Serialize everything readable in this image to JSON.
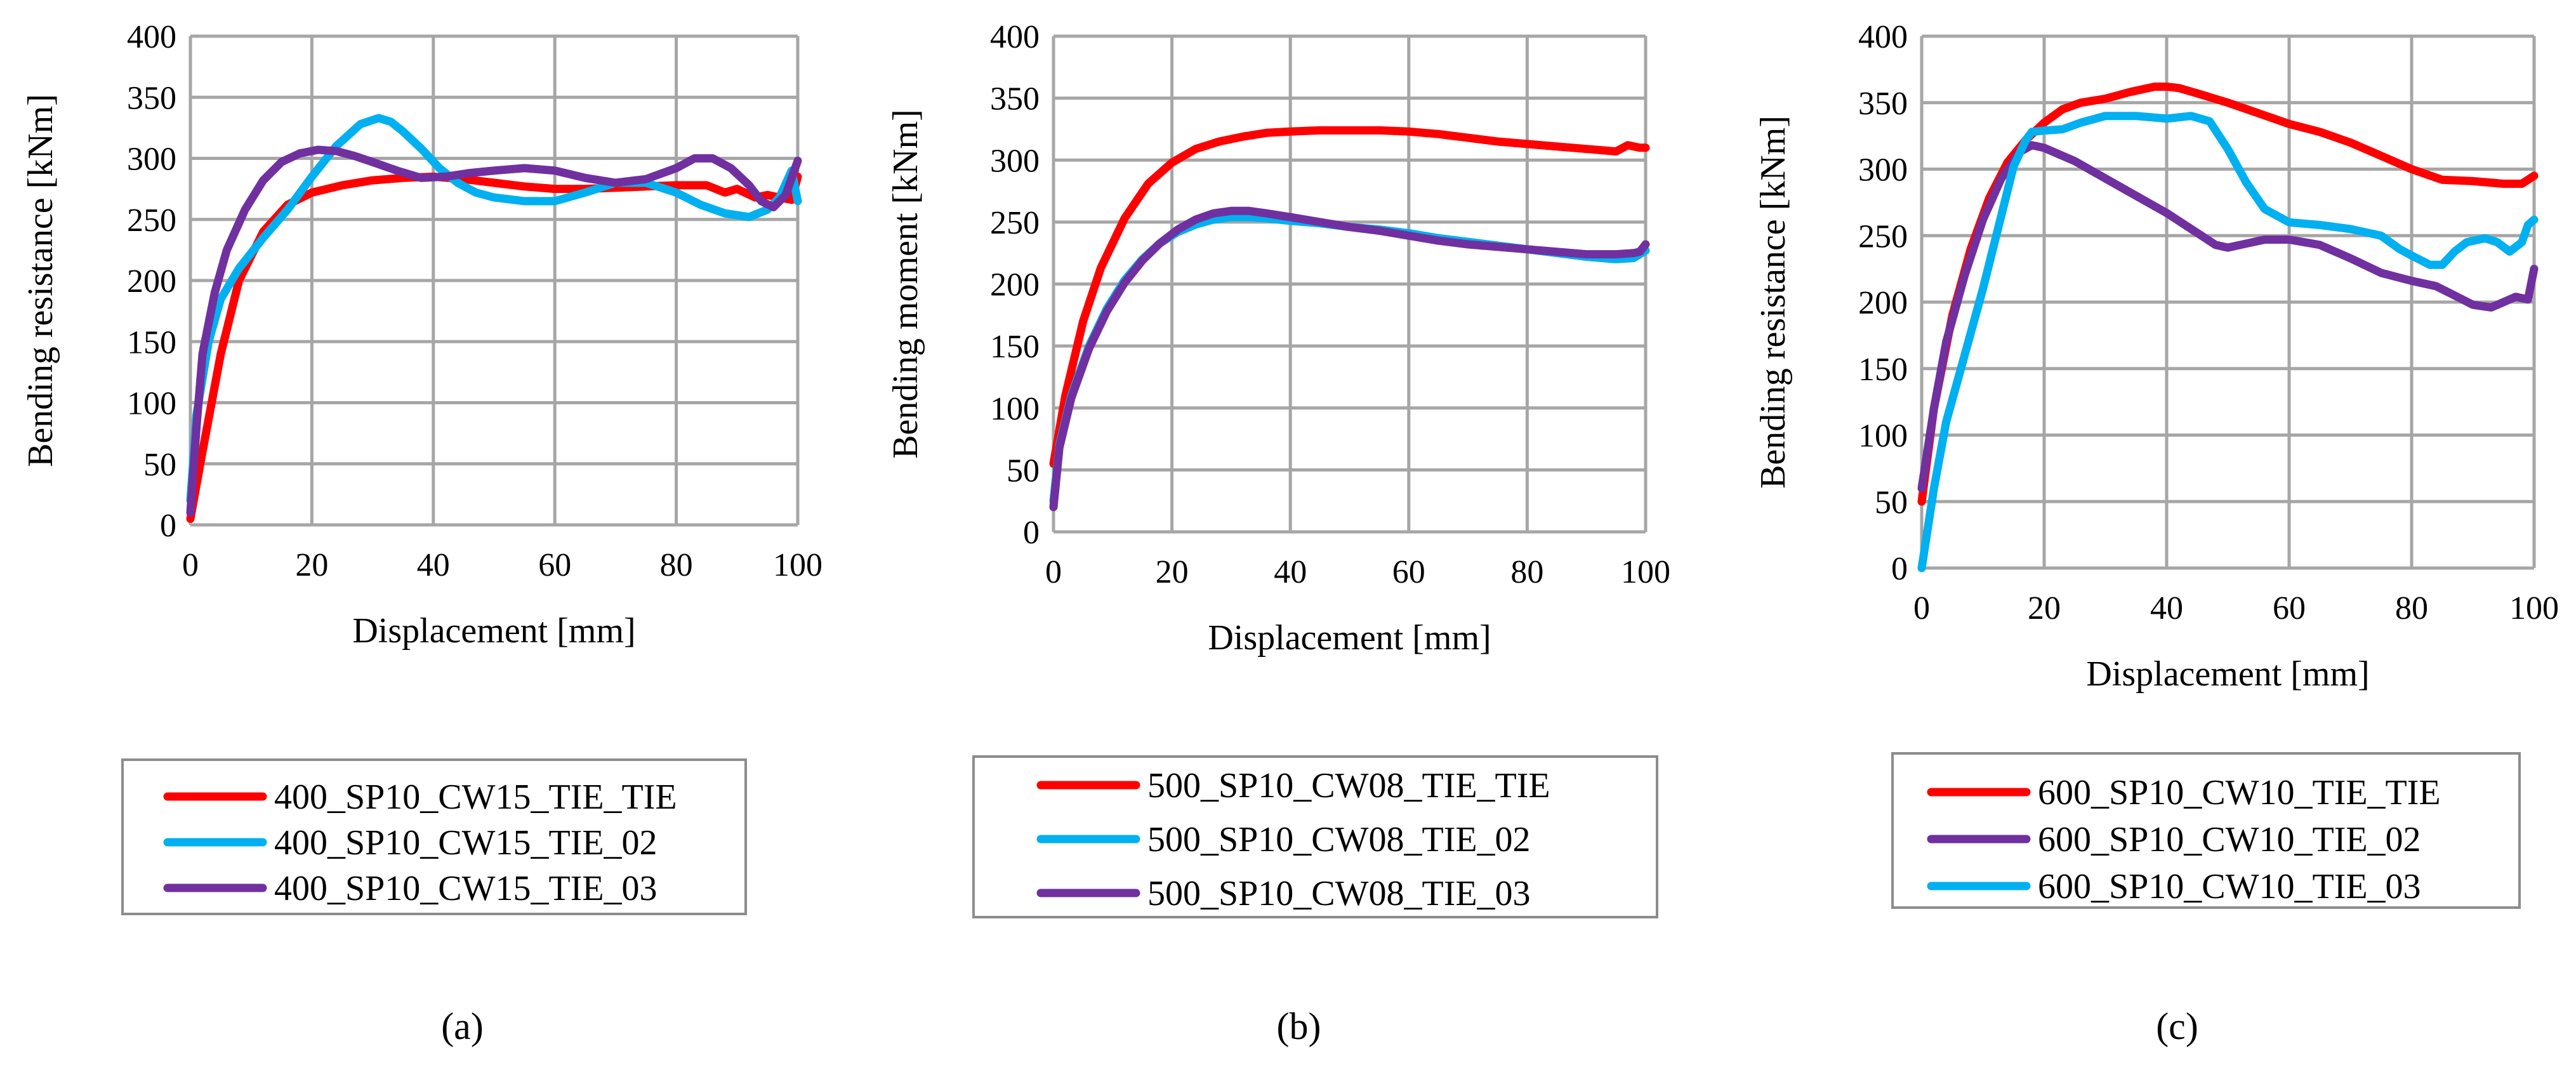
{
  "chart_data": [
    {
      "type": "line",
      "panel_label": "(a)",
      "title": "",
      "xlabel": "Displacement [mm]",
      "ylabel": "Bending resistance [kNm]",
      "xlim": [
        0,
        100
      ],
      "ylim": [
        0,
        400
      ],
      "xticks": [
        0,
        20,
        40,
        60,
        80,
        100
      ],
      "yticks": [
        0,
        50,
        100,
        150,
        200,
        250,
        300,
        350,
        400
      ],
      "grid": true,
      "legend_position": "below",
      "series": [
        {
          "name": "400_SP10_CW15_TIE_TIE",
          "color": "#ff0000",
          "x": [
            0,
            2,
            5,
            8,
            12,
            16,
            20,
            25,
            30,
            35,
            40,
            45,
            50,
            55,
            60,
            65,
            70,
            75,
            80,
            85,
            88,
            90,
            93,
            95,
            97,
            99,
            100
          ],
          "y": [
            5,
            60,
            140,
            200,
            240,
            262,
            272,
            278,
            282,
            284,
            285,
            283,
            280,
            277,
            275,
            275,
            276,
            277,
            278,
            278,
            272,
            275,
            268,
            270,
            268,
            266,
            285
          ]
        },
        {
          "name": "400_SP10_CW15_TIE_02",
          "color": "#00b0f0",
          "x": [
            0,
            1,
            3,
            5,
            8,
            12,
            16,
            20,
            24,
            28,
            31,
            33,
            35,
            38,
            41,
            44,
            47,
            50,
            55,
            60,
            65,
            70,
            75,
            80,
            84,
            88,
            92,
            95,
            97,
            99,
            100
          ],
          "y": [
            20,
            90,
            150,
            185,
            210,
            235,
            258,
            285,
            310,
            328,
            333,
            330,
            322,
            308,
            292,
            280,
            272,
            268,
            265,
            265,
            272,
            280,
            280,
            272,
            262,
            255,
            252,
            258,
            268,
            290,
            265
          ]
        },
        {
          "name": "400_SP10_CW15_TIE_03",
          "color": "#7030a0",
          "x": [
            0,
            1,
            2,
            4,
            6,
            9,
            12,
            15,
            18,
            21,
            24,
            27,
            30,
            34,
            38,
            42,
            46,
            50,
            55,
            60,
            65,
            70,
            75,
            80,
            83,
            86,
            89,
            92,
            94,
            96,
            98,
            100
          ],
          "y": [
            10,
            80,
            140,
            190,
            225,
            258,
            282,
            297,
            304,
            307,
            306,
            302,
            297,
            290,
            284,
            285,
            288,
            290,
            292,
            290,
            284,
            280,
            283,
            292,
            300,
            300,
            292,
            278,
            265,
            260,
            270,
            298
          ]
        }
      ]
    },
    {
      "type": "line",
      "panel_label": "(b)",
      "title": "",
      "xlabel": "Displacement [mm]",
      "ylabel": "Bending moment [kNm]",
      "xlim": [
        0,
        100
      ],
      "ylim": [
        0,
        400
      ],
      "xticks": [
        0,
        20,
        40,
        60,
        80,
        100
      ],
      "yticks": [
        0,
        50,
        100,
        150,
        200,
        250,
        300,
        350,
        400
      ],
      "grid": true,
      "legend_position": "below",
      "series": [
        {
          "name": "500_SP10_CW08_TIE_TIE",
          "color": "#ff0000",
          "x": [
            0,
            2,
            5,
            8,
            12,
            16,
            20,
            24,
            28,
            32,
            36,
            40,
            45,
            50,
            55,
            60,
            65,
            70,
            75,
            80,
            85,
            90,
            95,
            97,
            99,
            100
          ],
          "y": [
            55,
            110,
            170,
            213,
            253,
            281,
            298,
            309,
            315,
            319,
            322,
            323,
            324,
            324,
            324,
            323,
            321,
            318,
            315,
            313,
            311,
            309,
            307,
            312,
            310,
            310
          ]
        },
        {
          "name": "500_SP10_CW08_TIE_02",
          "color": "#00b0f0",
          "x": [
            0,
            1,
            3,
            6,
            9,
            12,
            15,
            18,
            21,
            24,
            27,
            30,
            33,
            36,
            40,
            45,
            50,
            55,
            60,
            65,
            70,
            75,
            80,
            85,
            90,
            95,
            98,
            100
          ],
          "y": [
            25,
            70,
            110,
            150,
            180,
            203,
            220,
            233,
            242,
            248,
            252,
            254,
            254,
            253,
            251,
            249,
            246,
            244,
            241,
            237,
            234,
            231,
            228,
            225,
            222,
            220,
            221,
            227
          ]
        },
        {
          "name": "500_SP10_CW08_TIE_03",
          "color": "#7030a0",
          "x": [
            0,
            1,
            3,
            6,
            9,
            12,
            15,
            18,
            21,
            24,
            27,
            30,
            33,
            36,
            40,
            45,
            50,
            55,
            60,
            65,
            70,
            75,
            80,
            85,
            90,
            95,
            98,
            99,
            100
          ],
          "y": [
            20,
            68,
            108,
            148,
            178,
            201,
            219,
            233,
            244,
            252,
            257,
            259,
            259,
            257,
            254,
            250,
            246,
            243,
            239,
            235,
            232,
            230,
            228,
            226,
            224,
            224,
            225,
            226,
            232
          ]
        }
      ]
    },
    {
      "type": "line",
      "panel_label": "(c)",
      "title": "",
      "xlabel": "Displacement [mm]",
      "ylabel": "Bending resistance [kNm]",
      "xlim": [
        0,
        100
      ],
      "ylim": [
        0,
        400
      ],
      "xticks": [
        0,
        20,
        40,
        60,
        80,
        100
      ],
      "yticks": [
        0,
        50,
        100,
        150,
        200,
        250,
        300,
        350,
        400
      ],
      "grid": true,
      "legend_position": "below",
      "series": [
        {
          "name": "600_SP10_CW10_TIE_TIE",
          "color": "#ff0000",
          "x": [
            0,
            2,
            5,
            8,
            11,
            14,
            17,
            20,
            23,
            26,
            30,
            34,
            38,
            40,
            42,
            45,
            50,
            55,
            60,
            65,
            70,
            75,
            80,
            85,
            90,
            95,
            98,
            100
          ],
          "y": [
            50,
            120,
            190,
            240,
            278,
            305,
            322,
            335,
            345,
            350,
            353,
            358,
            362,
            362,
            361,
            357,
            350,
            342,
            334,
            328,
            320,
            310,
            300,
            292,
            291,
            289,
            289,
            295
          ]
        },
        {
          "name": "600_SP10_CW10_TIE_02",
          "color": "#7030a0",
          "x": [
            0,
            2,
            4,
            7,
            10,
            13,
            16,
            18,
            20,
            25,
            30,
            35,
            40,
            45,
            48,
            50,
            53,
            56,
            60,
            65,
            70,
            75,
            80,
            84,
            87,
            90,
            93,
            95,
            97,
            99,
            100
          ],
          "y": [
            60,
            120,
            170,
            220,
            262,
            293,
            313,
            318,
            316,
            306,
            293,
            280,
            267,
            252,
            243,
            241,
            244,
            247,
            247,
            243,
            233,
            222,
            216,
            212,
            205,
            198,
            196,
            200,
            204,
            202,
            225
          ]
        },
        {
          "name": "600_SP10_CW10_TIE_03",
          "color": "#00b0f0",
          "x": [
            0,
            2,
            4,
            7,
            10,
            13,
            15,
            17,
            18,
            20,
            23,
            26,
            30,
            35,
            40,
            44,
            47,
            50,
            53,
            56,
            60,
            65,
            70,
            75,
            78,
            80,
            83,
            85,
            87,
            89,
            92,
            94,
            96,
            98,
            99,
            100
          ],
          "y": [
            0,
            60,
            110,
            160,
            210,
            265,
            302,
            322,
            328,
            329,
            330,
            335,
            340,
            340,
            338,
            340,
            336,
            315,
            290,
            270,
            260,
            258,
            255,
            250,
            240,
            235,
            228,
            228,
            238,
            245,
            248,
            245,
            238,
            245,
            258,
            262
          ]
        }
      ]
    }
  ]
}
